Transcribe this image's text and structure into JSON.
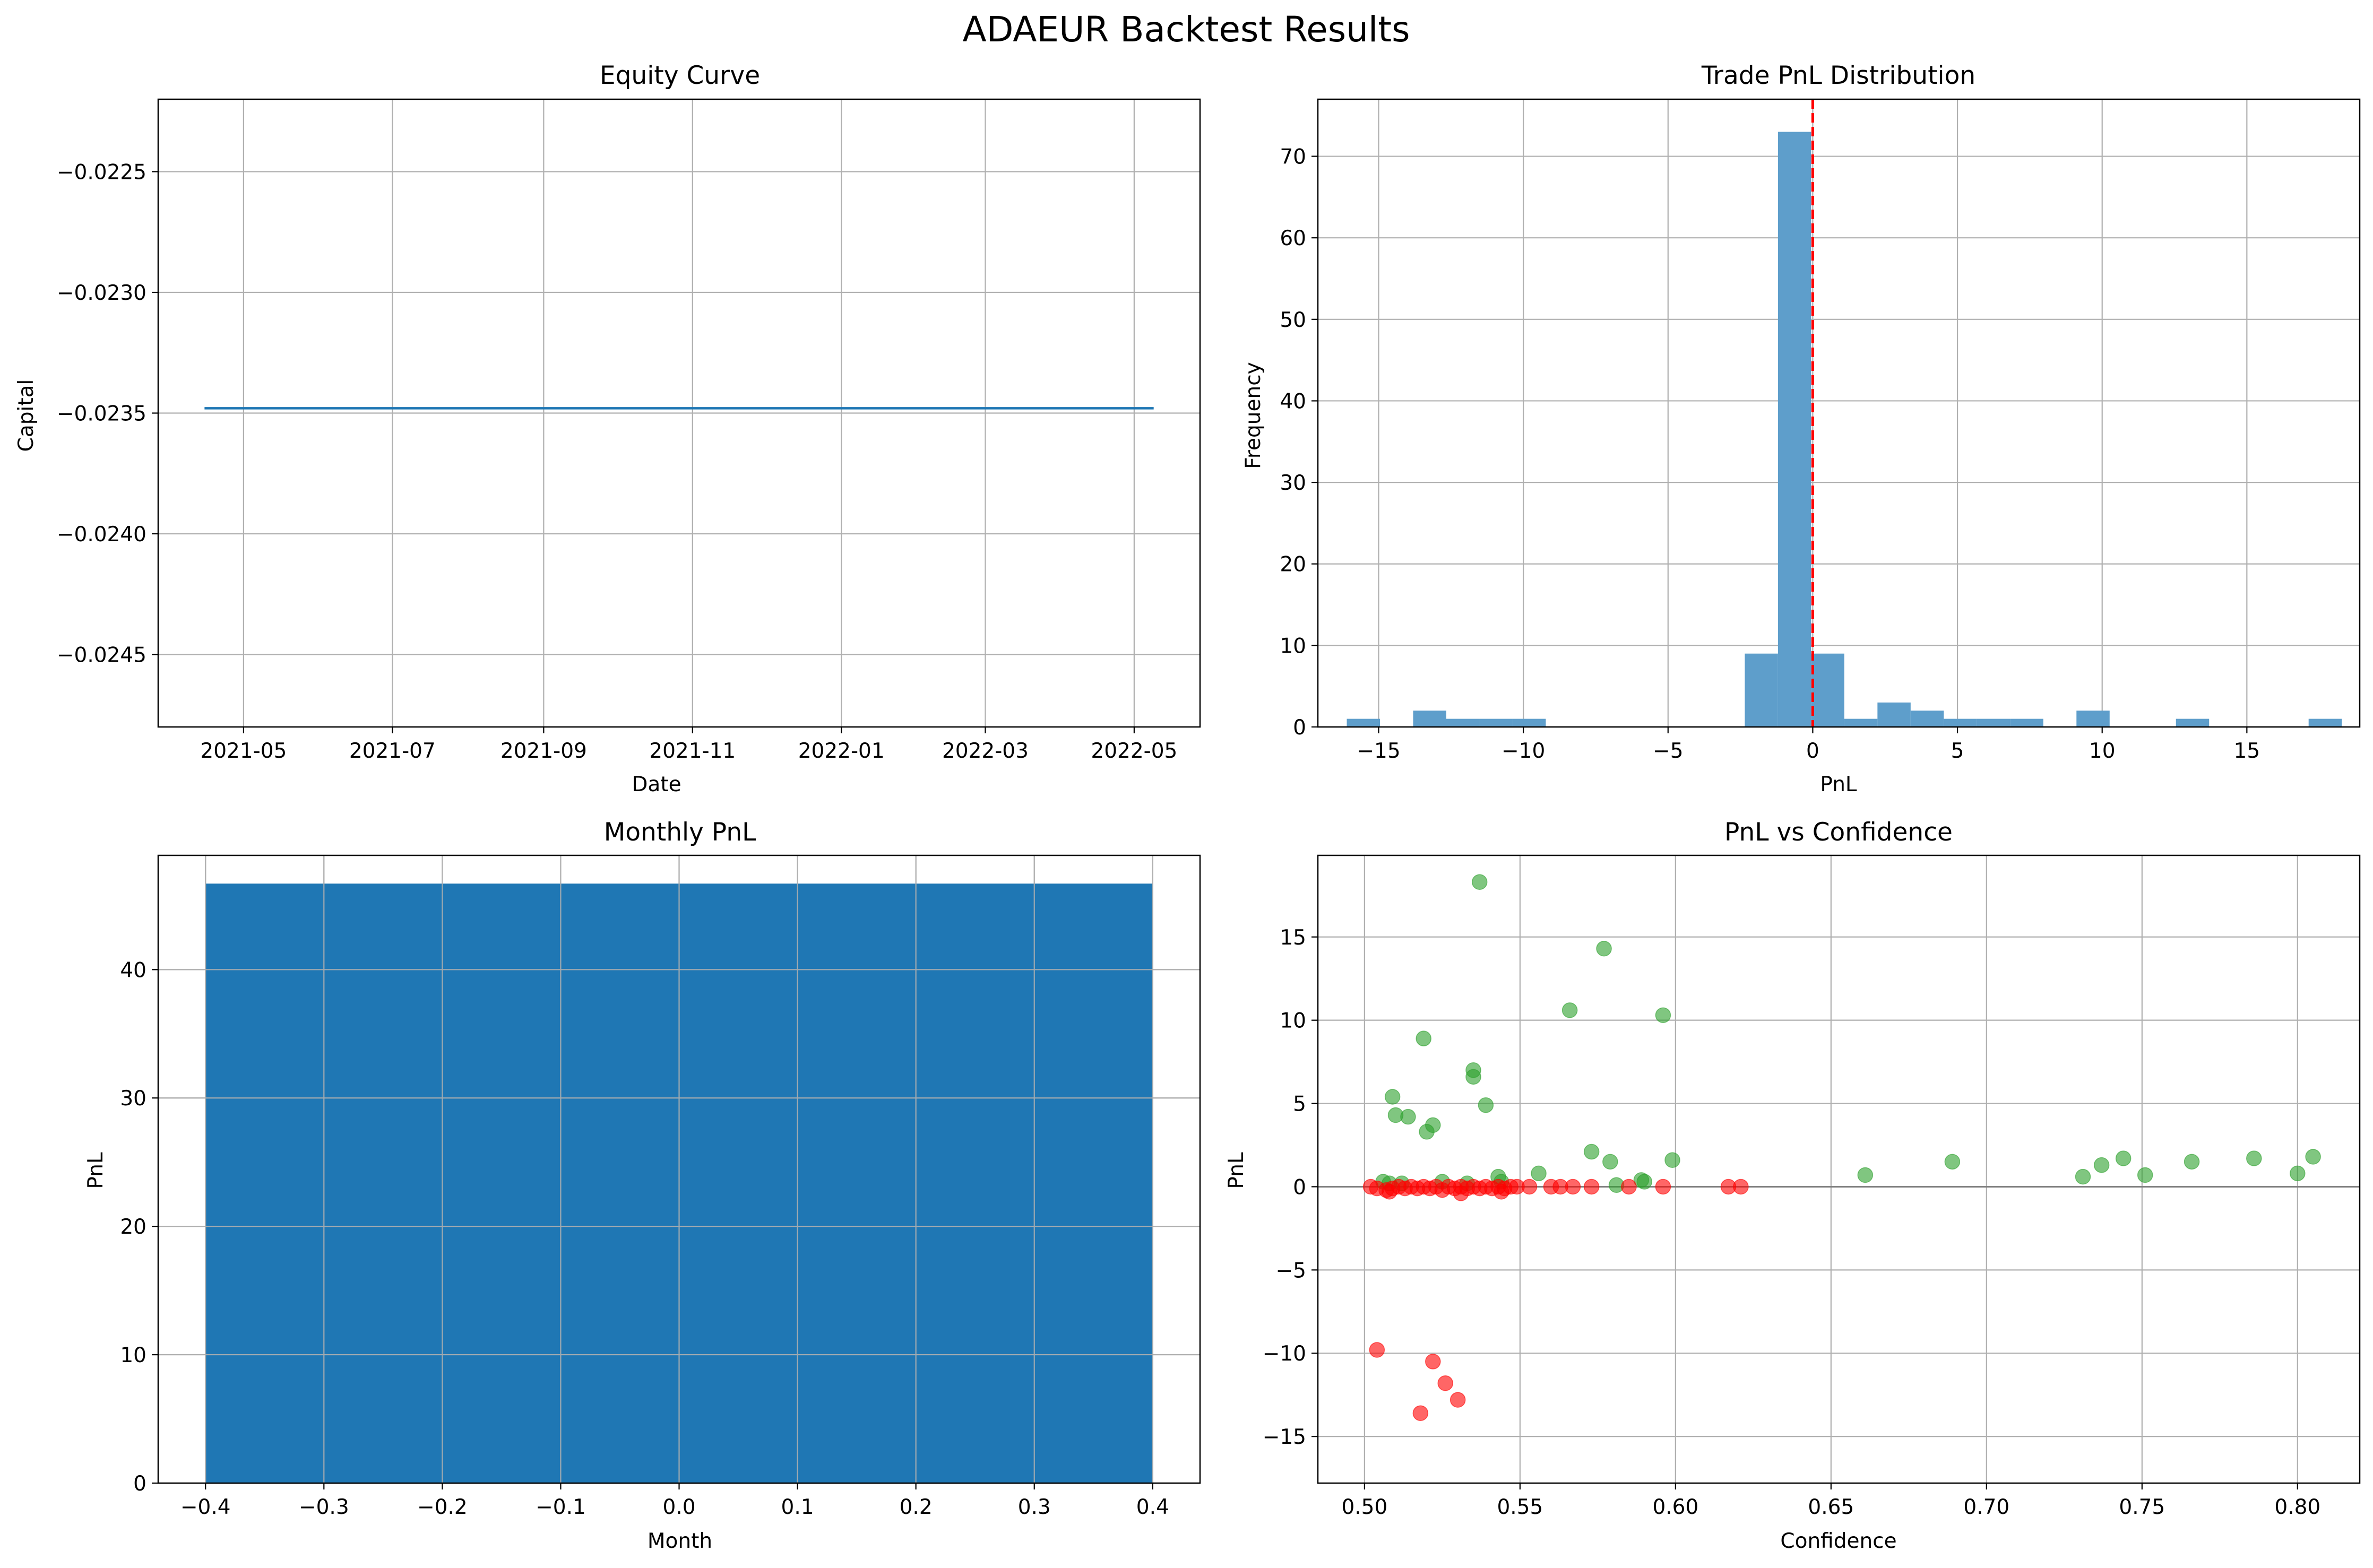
{
  "figure": {
    "title": "ADAEUR Backtest Results",
    "colors": {
      "line": "#1f77b4",
      "hist": "#5e9ecb",
      "bar": "#1f77b4",
      "win": "#2ca02c",
      "loss": "#ff0000",
      "zero_marker": "#ff0000",
      "grid": "#b0b0b0"
    }
  },
  "chart_data": [
    {
      "id": "equity",
      "type": "line",
      "title": "Equity Curve",
      "xlabel": "Date",
      "ylabel": "Capital",
      "grid": true,
      "xlim": [
        "2021-03-27",
        "2022-05-28"
      ],
      "ylim": [
        -0.0248,
        -0.0222
      ],
      "x_ticks": [
        "2021-05",
        "2021-07",
        "2021-09",
        "2021-11",
        "2022-01",
        "2022-03",
        "2022-05"
      ],
      "y_ticks": [
        -0.0225,
        -0.023,
        -0.0235,
        -0.024,
        -0.0245
      ],
      "y_tick_labels": [
        "−0.0225",
        "−0.0230",
        "−0.0235",
        "−0.0240",
        "−0.0245"
      ],
      "series": [
        {
          "x": [
            "2021-04-15",
            "2022-05-09"
          ],
          "y": [
            -0.02348,
            -0.02348
          ]
        }
      ]
    },
    {
      "id": "hist",
      "type": "bar",
      "title": "Trade PnL Distribution",
      "xlabel": "PnL",
      "ylabel": "Frequency",
      "grid": true,
      "xlim": [
        -17.1,
        18.9
      ],
      "ylim": [
        0,
        77
      ],
      "x_ticks": [
        -15,
        -10,
        -5,
        0,
        5,
        10,
        15
      ],
      "x_tick_labels": [
        "−15",
        "−10",
        "−5",
        "0",
        "5",
        "10",
        "15"
      ],
      "y_ticks": [
        0,
        10,
        20,
        30,
        40,
        50,
        60,
        70
      ],
      "bin_start": -16.1,
      "bin_width": 1.146,
      "counts": [
        1,
        0,
        2,
        1,
        1,
        1,
        0,
        0,
        0,
        0,
        0,
        0,
        9,
        73,
        9,
        1,
        3,
        2,
        1,
        1,
        1,
        0,
        2,
        0,
        0,
        1,
        0,
        0,
        0,
        1
      ],
      "reference_line": {
        "x": 0,
        "style": "dashed"
      }
    },
    {
      "id": "monthly",
      "type": "bar",
      "title": "Monthly PnL",
      "xlabel": "Month",
      "ylabel": "PnL",
      "grid": true,
      "xlim": [
        -0.44,
        0.44
      ],
      "ylim": [
        0,
        48.9
      ],
      "x_ticks": [
        -0.4,
        -0.3,
        -0.2,
        -0.1,
        0.0,
        0.1,
        0.2,
        0.3,
        0.4
      ],
      "x_tick_labels": [
        "−0.4",
        "−0.3",
        "−0.2",
        "−0.1",
        "0.0",
        "0.1",
        "0.2",
        "0.3",
        "0.4"
      ],
      "y_ticks": [
        0,
        10,
        20,
        30,
        40
      ],
      "categories": [
        0
      ],
      "values": [
        46.7
      ],
      "bar_width": 0.8
    },
    {
      "id": "scatter",
      "type": "scatter",
      "title": "PnL vs Confidence",
      "xlabel": "Confidence",
      "ylabel": "PnL",
      "grid": true,
      "xlim": [
        0.485,
        0.82
      ],
      "ylim": [
        -17.8,
        19.9
      ],
      "x_ticks": [
        0.5,
        0.55,
        0.6,
        0.65,
        0.7,
        0.75,
        0.8
      ],
      "x_tick_labels": [
        "0.50",
        "0.55",
        "0.60",
        "0.65",
        "0.70",
        "0.75",
        "0.80"
      ],
      "y_ticks": [
        -15,
        -10,
        -5,
        0,
        5,
        10,
        15
      ],
      "y_tick_labels": [
        "−15",
        "−10",
        "−5",
        "0",
        "5",
        "10",
        "15"
      ],
      "reference_line": {
        "y": 0
      },
      "series": [
        {
          "role": "win",
          "x": [
            0.537,
            0.577,
            0.566,
            0.596,
            0.519,
            0.535,
            0.535,
            0.509,
            0.51,
            0.514,
            0.522,
            0.52,
            0.539,
            0.573,
            0.599,
            0.579,
            0.556,
            0.543,
            0.544,
            0.589,
            0.59,
            0.506,
            0.508,
            0.525,
            0.512,
            0.533,
            0.581,
            0.661,
            0.689,
            0.731,
            0.737,
            0.744,
            0.751,
            0.766,
            0.786,
            0.8,
            0.805
          ],
          "y": [
            18.3,
            14.3,
            10.6,
            10.3,
            8.9,
            7.0,
            6.6,
            5.4,
            4.3,
            4.2,
            3.7,
            3.3,
            4.9,
            2.1,
            1.6,
            1.5,
            0.8,
            0.6,
            0.3,
            0.4,
            0.3,
            0.3,
            0.2,
            0.3,
            0.2,
            0.2,
            0.1,
            0.7,
            1.5,
            0.6,
            1.3,
            1.7,
            0.7,
            1.5,
            1.7,
            0.8,
            1.8
          ]
        },
        {
          "role": "loss",
          "x": [
            0.502,
            0.504,
            0.507,
            0.509,
            0.511,
            0.513,
            0.515,
            0.517,
            0.519,
            0.521,
            0.523,
            0.525,
            0.527,
            0.529,
            0.531,
            0.533,
            0.535,
            0.537,
            0.539,
            0.541,
            0.543,
            0.545,
            0.547,
            0.549,
            0.553,
            0.56,
            0.563,
            0.567,
            0.573,
            0.585,
            0.596,
            0.617,
            0.621,
            0.508,
            0.531,
            0.544,
            0.504,
            0.522,
            0.518,
            0.526,
            0.53
          ],
          "y": [
            0.0,
            -0.1,
            -0.2,
            -0.1,
            0.0,
            -0.1,
            0.0,
            -0.1,
            0.0,
            -0.1,
            0.0,
            -0.2,
            0.0,
            -0.1,
            0.0,
            -0.1,
            0.0,
            -0.1,
            0.0,
            -0.1,
            0.0,
            -0.1,
            0.0,
            0.0,
            0.0,
            0.0,
            0.0,
            0.0,
            0.0,
            0.0,
            0.0,
            0.0,
            0.0,
            -0.3,
            -0.4,
            -0.3,
            -9.8,
            -10.5,
            -13.6,
            -11.8,
            -12.8
          ]
        }
      ]
    }
  ]
}
